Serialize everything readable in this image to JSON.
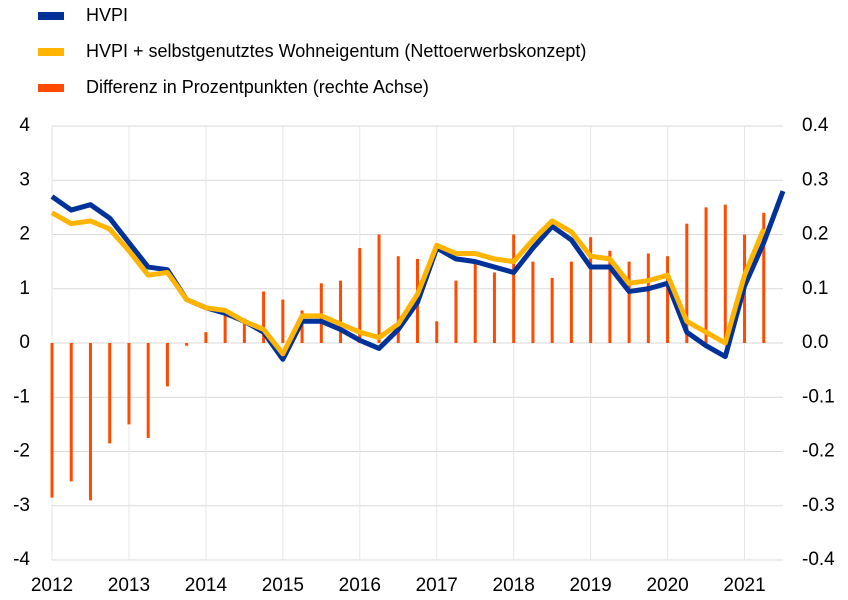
{
  "chart_data": {
    "type": "bar_line",
    "categories": [
      "2012",
      null,
      null,
      null,
      "2013",
      null,
      null,
      null,
      "2014",
      null,
      null,
      null,
      "2015",
      null,
      null,
      null,
      "2016",
      null,
      null,
      null,
      "2017",
      null,
      null,
      null,
      "2018",
      null,
      null,
      null,
      "2019",
      null,
      null,
      null,
      "2020",
      null,
      null,
      null,
      "2021",
      null,
      null
    ],
    "series": [
      {
        "name": "HVPI",
        "color": "#003299",
        "kind": "line",
        "values": [
          2.7,
          2.45,
          2.55,
          2.3,
          1.85,
          1.4,
          1.35,
          0.8,
          0.65,
          0.55,
          0.4,
          0.2,
          -0.3,
          0.4,
          0.4,
          0.25,
          0.05,
          -0.1,
          0.25,
          0.75,
          1.75,
          1.55,
          1.5,
          1.4,
          1.3,
          1.75,
          2.15,
          1.9,
          1.4,
          1.4,
          0.95,
          1.0,
          1.1,
          0.2,
          -0.05,
          -0.25,
          1.05,
          1.85,
          2.8
        ]
      },
      {
        "name": "HVPI + selbstgenutztes Wohneigentum (Nettoerwerbskonzept)",
        "color": "#ffb400",
        "kind": "line",
        "values": [
          2.4,
          2.2,
          2.25,
          2.1,
          1.7,
          1.25,
          1.3,
          0.8,
          0.65,
          0.6,
          0.4,
          0.25,
          -0.2,
          0.5,
          0.5,
          0.35,
          0.2,
          0.1,
          0.35,
          0.9,
          1.8,
          1.65,
          1.65,
          1.55,
          1.5,
          1.9,
          2.25,
          2.05,
          1.6,
          1.55,
          1.1,
          1.15,
          1.25,
          0.4,
          0.2,
          0.0,
          1.25,
          2.1,
          null
        ]
      },
      {
        "name": "Differenz in Prozentpunkten (rechte Achse)",
        "color": "#ff4b00",
        "kind": "bar",
        "axis": "y2",
        "values": [
          -0.285,
          -0.255,
          -0.29,
          -0.185,
          -0.15,
          -0.175,
          -0.08,
          -0.005,
          0.02,
          0.06,
          0.045,
          0.095,
          0.08,
          0.06,
          0.11,
          0.115,
          0.175,
          0.2,
          0.16,
          0.155,
          0.04,
          0.115,
          0.15,
          0.13,
          0.2,
          0.15,
          0.12,
          0.15,
          0.195,
          0.17,
          0.15,
          0.165,
          0.16,
          0.22,
          0.25,
          0.255,
          0.2,
          0.24,
          null
        ]
      }
    ],
    "ylim": [
      -4,
      4
    ],
    "yticks": [
      4,
      3,
      2,
      1,
      0,
      -1,
      -2,
      -3,
      -4
    ],
    "y2lim": [
      -0.4,
      0.4
    ],
    "y2ticks": [
      0.4,
      0.3,
      0.2,
      0.1,
      {
        "value": 0,
        "label": "0.0"
      },
      -0.1,
      -0.2,
      -0.3,
      -0.4
    ],
    "grid": true
  }
}
